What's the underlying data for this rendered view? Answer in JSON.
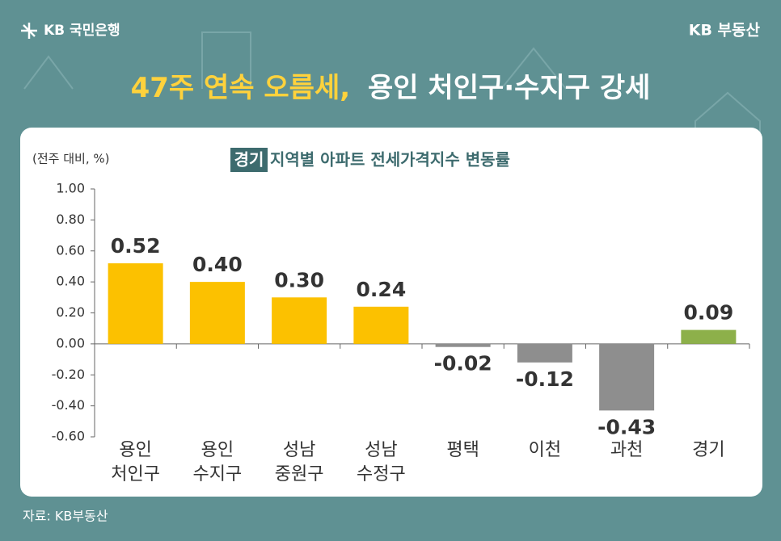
{
  "header": {
    "bank": "KB 국민은행",
    "brand": "KB 부동산",
    "title_parts": [
      "47주 연속 오름세,",
      "용인 처인구·수지구 강세"
    ]
  },
  "chart_data": {
    "type": "bar",
    "title_tag": "경기",
    "title": "지역별 아파트 전세가격지수 변동률",
    "y_label": "(전주 대비, %)",
    "categories": [
      [
        "용인",
        "처인구"
      ],
      [
        "용인",
        "수지구"
      ],
      [
        "성남",
        "중원구"
      ],
      [
        "성남",
        "수정구"
      ],
      [
        "평택"
      ],
      [
        "이천"
      ],
      [
        "과천"
      ],
      [
        "경기"
      ]
    ],
    "values": [
      0.52,
      0.4,
      0.3,
      0.24,
      -0.02,
      -0.12,
      -0.43,
      0.09
    ],
    "value_labels": [
      "0.52",
      "0.40",
      "0.30",
      "0.24",
      "-0.02",
      "-0.12",
      "-0.43",
      "0.09"
    ],
    "colors": [
      "#fcc100",
      "#fcc100",
      "#fcc100",
      "#fcc100",
      "#8e8e8e",
      "#8e8e8e",
      "#8e8e8e",
      "#8db04a"
    ],
    "ylim": [
      -0.6,
      1.0
    ],
    "yticks": [
      {
        "value": -0.6,
        "label": "-0.60"
      },
      {
        "value": -0.4,
        "label": "-0.40"
      },
      {
        "value": -0.2,
        "label": "-0.20"
      },
      {
        "value": 0,
        "label": "0.00"
      },
      {
        "value": 0.2,
        "label": "0.20"
      },
      {
        "value": 0.4,
        "label": "0.40"
      },
      {
        "value": 0.6,
        "label": "0.60"
      },
      {
        "value": 0.8,
        "label": "0.80"
      },
      {
        "value": 1.0,
        "label": "1.00"
      }
    ],
    "source": "자료: KB부동산"
  }
}
